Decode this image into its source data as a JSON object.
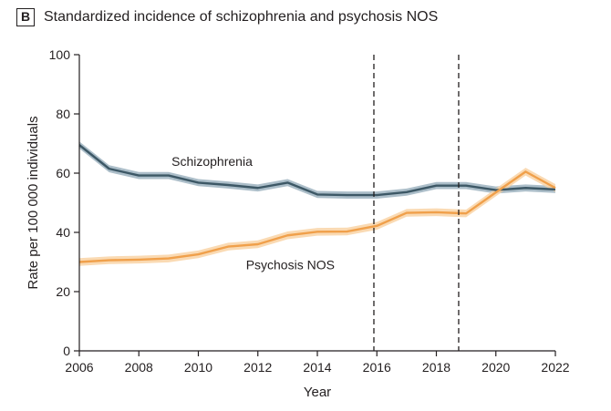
{
  "panel": {
    "label": "B",
    "title": "Standardized incidence of schizophrenia and psychosis NOS"
  },
  "chart_data": {
    "type": "line",
    "xlabel": "Year",
    "ylabel": "Rate per 100 000 individuals",
    "xlim": [
      2006,
      2022
    ],
    "ylim": [
      0,
      100
    ],
    "xticks": [
      2006,
      2008,
      2010,
      2012,
      2014,
      2016,
      2018,
      2020,
      2022
    ],
    "yticks": [
      0,
      20,
      40,
      60,
      80,
      100
    ],
    "grid": false,
    "reference_lines_x": [
      2015.9,
      2018.75
    ],
    "x": [
      2006,
      2007,
      2008,
      2009,
      2010,
      2011,
      2012,
      2013,
      2014,
      2015,
      2016,
      2017,
      2018,
      2019,
      2020,
      2021,
      2022
    ],
    "series": [
      {
        "name": "Schizophrenia",
        "color": "#3d5866",
        "band_color": "#9db3c0",
        "values": [
          69.5,
          61.5,
          59.2,
          59.2,
          56.8,
          56.0,
          55.0,
          56.8,
          52.8,
          52.6,
          52.6,
          53.6,
          55.8,
          55.8,
          54.3,
          55.0,
          54.5
        ],
        "band": 1.2
      },
      {
        "name": "Psychosis NOS",
        "color": "#f0a04b",
        "band_color": "#f9d3a6",
        "values": [
          30.0,
          30.6,
          30.8,
          31.2,
          32.6,
          35.2,
          36.0,
          39.0,
          40.2,
          40.3,
          42.2,
          46.6,
          46.8,
          46.4,
          53.5,
          60.5,
          55.0
        ],
        "band": 1.3
      }
    ]
  }
}
